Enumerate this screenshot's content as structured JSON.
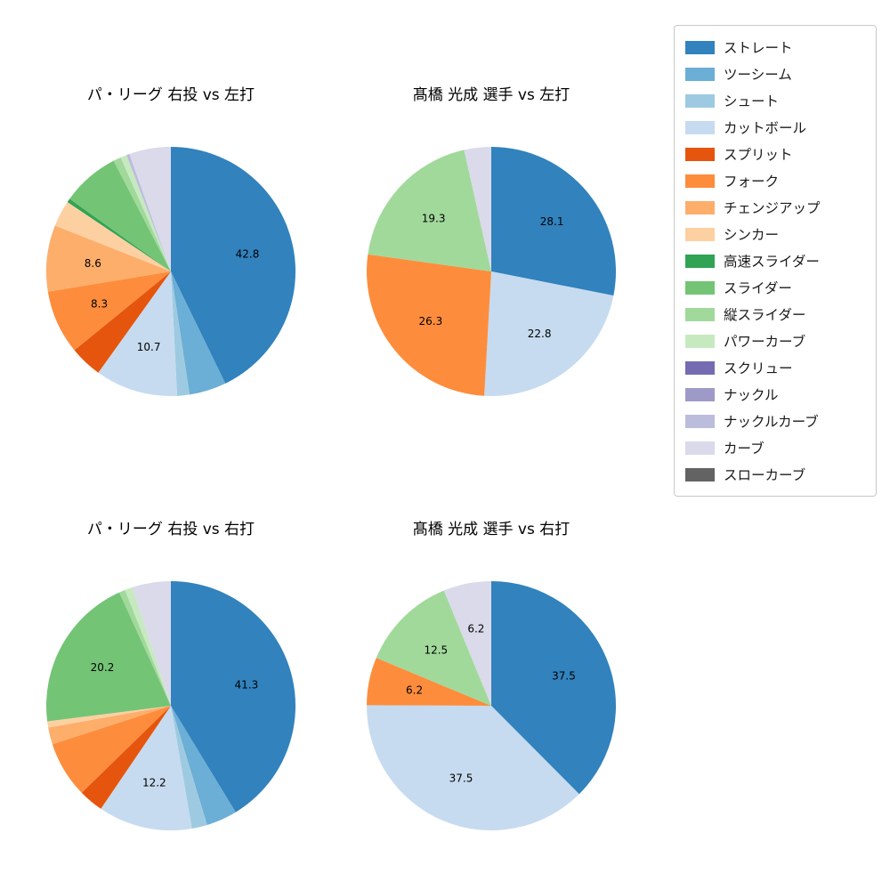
{
  "figure": {
    "background": "#ffffff"
  },
  "legend": {
    "items": [
      {
        "label": "ストレート",
        "color": "#3182bd"
      },
      {
        "label": "ツーシーム",
        "color": "#6baed6"
      },
      {
        "label": "シュート",
        "color": "#9ecae1"
      },
      {
        "label": "カットボール",
        "color": "#c6dbef"
      },
      {
        "label": "スプリット",
        "color": "#e6550d"
      },
      {
        "label": "フォーク",
        "color": "#fd8d3c"
      },
      {
        "label": "チェンジアップ",
        "color": "#fdae6b"
      },
      {
        "label": "シンカー",
        "color": "#fdd0a2"
      },
      {
        "label": "高速スライダー",
        "color": "#31a354"
      },
      {
        "label": "スライダー",
        "color": "#74c476"
      },
      {
        "label": "縦スライダー",
        "color": "#a1d99b"
      },
      {
        "label": "パワーカーブ",
        "color": "#c7e9c0"
      },
      {
        "label": "スクリュー",
        "color": "#756bb1"
      },
      {
        "label": "ナックル",
        "color": "#9e9ac8"
      },
      {
        "label": "ナックルカーブ",
        "color": "#bcbddc"
      },
      {
        "label": "カーブ",
        "color": "#dadaeb"
      },
      {
        "label": "スローカーブ",
        "color": "#636363"
      }
    ]
  },
  "chart_data": [
    {
      "type": "pie",
      "title": "パ・リーグ 右投 vs 左打",
      "start_angle": "12-o'clock",
      "direction": "clockwise",
      "slices": [
        {
          "name": "ストレート",
          "value": 42.8,
          "label": "42.8",
          "color": "#3182bd"
        },
        {
          "name": "ツーシーム",
          "value": 4.8,
          "label": null,
          "color": "#6baed6"
        },
        {
          "name": "シュート",
          "value": 1.6,
          "label": null,
          "color": "#9ecae1"
        },
        {
          "name": "カットボール",
          "value": 10.7,
          "label": "10.7",
          "color": "#c6dbef"
        },
        {
          "name": "スプリット",
          "value": 4.2,
          "label": null,
          "color": "#e6550d"
        },
        {
          "name": "フォーク",
          "value": 8.3,
          "label": "8.3",
          "color": "#fd8d3c"
        },
        {
          "name": "チェンジアップ",
          "value": 8.6,
          "label": "8.6",
          "color": "#fdae6b"
        },
        {
          "name": "シンカー",
          "value": 3.4,
          "label": null,
          "color": "#fdd0a2"
        },
        {
          "name": "高速スライダー",
          "value": 0.5,
          "label": null,
          "color": "#31a354"
        },
        {
          "name": "スライダー",
          "value": 7.5,
          "label": null,
          "color": "#74c476"
        },
        {
          "name": "縦スライダー",
          "value": 1.0,
          "label": null,
          "color": "#a1d99b"
        },
        {
          "name": "パワーカーブ",
          "value": 0.8,
          "label": null,
          "color": "#c7e9c0"
        },
        {
          "name": "ナックルカーブ",
          "value": 0.4,
          "label": null,
          "color": "#bcbddc"
        },
        {
          "name": "カーブ",
          "value": 5.4,
          "label": null,
          "color": "#dadaeb"
        }
      ]
    },
    {
      "type": "pie",
      "title": "髙橋 光成 選手 vs 左打",
      "start_angle": "12-o'clock",
      "direction": "clockwise",
      "slices": [
        {
          "name": "ストレート",
          "value": 28.1,
          "label": "28.1",
          "color": "#3182bd"
        },
        {
          "name": "カットボール",
          "value": 22.8,
          "label": "22.8",
          "color": "#c6dbef"
        },
        {
          "name": "フォーク",
          "value": 26.3,
          "label": "26.3",
          "color": "#fd8d3c"
        },
        {
          "name": "縦スライダー",
          "value": 19.3,
          "label": "19.3",
          "color": "#a1d99b"
        },
        {
          "name": "カーブ",
          "value": 3.5,
          "label": null,
          "color": "#dadaeb"
        }
      ]
    },
    {
      "type": "pie",
      "title": "パ・リーグ 右投 vs 右打",
      "start_angle": "12-o'clock",
      "direction": "clockwise",
      "slices": [
        {
          "name": "ストレート",
          "value": 41.3,
          "label": "41.3",
          "color": "#3182bd"
        },
        {
          "name": "ツーシーム",
          "value": 4.0,
          "label": null,
          "color": "#6baed6"
        },
        {
          "name": "シュート",
          "value": 2.0,
          "label": null,
          "color": "#9ecae1"
        },
        {
          "name": "カットボール",
          "value": 12.2,
          "label": "12.2",
          "color": "#c6dbef"
        },
        {
          "name": "スプリット",
          "value": 3.2,
          "label": null,
          "color": "#e6550d"
        },
        {
          "name": "フォーク",
          "value": 7.3,
          "label": null,
          "color": "#fd8d3c"
        },
        {
          "name": "チェンジアップ",
          "value": 2.2,
          "label": null,
          "color": "#fdae6b"
        },
        {
          "name": "シンカー",
          "value": 0.8,
          "label": null,
          "color": "#fdd0a2"
        },
        {
          "name": "スライダー",
          "value": 20.2,
          "label": "20.2",
          "color": "#74c476"
        },
        {
          "name": "縦スライダー",
          "value": 0.8,
          "label": null,
          "color": "#a1d99b"
        },
        {
          "name": "パワーカーブ",
          "value": 1.0,
          "label": null,
          "color": "#c7e9c0"
        },
        {
          "name": "カーブ",
          "value": 5.0,
          "label": null,
          "color": "#dadaeb"
        }
      ]
    },
    {
      "type": "pie",
      "title": "髙橋 光成 選手 vs 右打",
      "start_angle": "12-o'clock",
      "direction": "clockwise",
      "slices": [
        {
          "name": "ストレート",
          "value": 37.5,
          "label": "37.5",
          "color": "#3182bd"
        },
        {
          "name": "カットボール",
          "value": 37.5,
          "label": "37.5",
          "color": "#c6dbef"
        },
        {
          "name": "フォーク",
          "value": 6.2,
          "label": "6.2",
          "color": "#fd8d3c"
        },
        {
          "name": "縦スライダー",
          "value": 12.5,
          "label": "12.5",
          "color": "#a1d99b"
        },
        {
          "name": "カーブ",
          "value": 6.2,
          "label": "6.2",
          "color": "#dadaeb"
        }
      ]
    }
  ]
}
